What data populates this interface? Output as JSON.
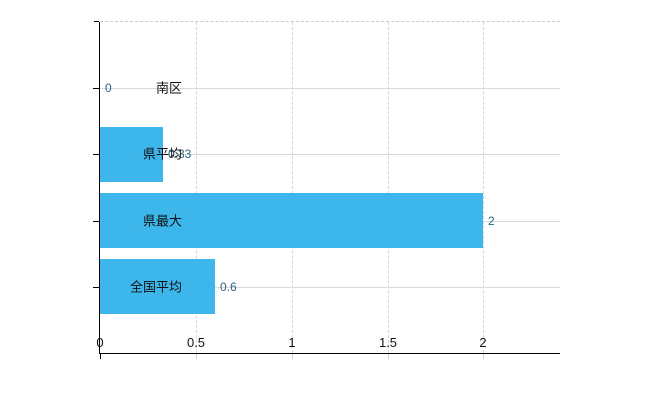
{
  "chart_data": {
    "type": "bar",
    "orientation": "horizontal",
    "title": "",
    "xlabel": "",
    "ylabel": "",
    "categories": [
      "南区",
      "県平均",
      "県最大",
      "全国平均"
    ],
    "values": [
      0,
      0.33,
      2,
      0.6
    ],
    "value_labels": [
      "0",
      "0.33",
      "2",
      "0.6"
    ],
    "xlim": [
      0,
      2.4
    ],
    "xticks": [
      0,
      0.5,
      1,
      1.5,
      2
    ],
    "xtick_labels": [
      "0",
      "0.5",
      "1",
      "1.5",
      "2"
    ],
    "grid": true,
    "legend": "none",
    "colors": {
      "bar": "#3db6ec",
      "value_label": "#2e6384",
      "axis": "#000000",
      "vertical_gridline": "#d6d6d6",
      "row_line": "#d4dcd4",
      "top_border": "#cbcbcb",
      "tick_label": "#111111",
      "background": "#ffffff"
    }
  }
}
